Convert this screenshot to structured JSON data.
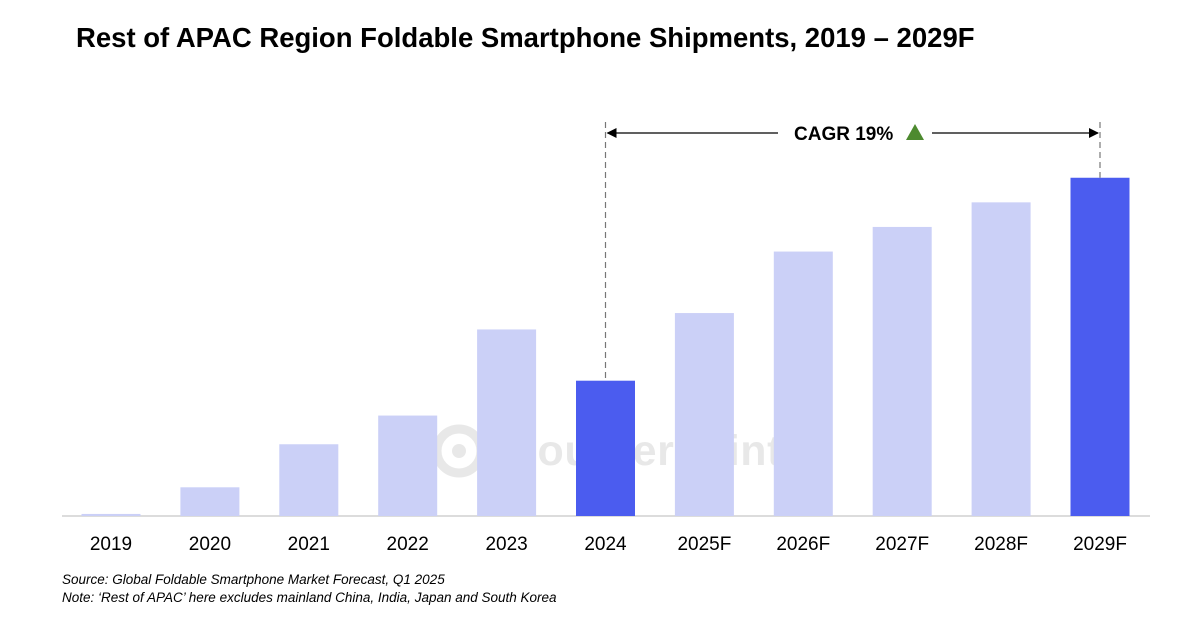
{
  "title": "Rest of APAC Region Foldable Smartphone Shipments, 2019 – 2029F",
  "chart_data": {
    "type": "bar",
    "categories": [
      "2019",
      "2020",
      "2021",
      "2022",
      "2023",
      "2024",
      "2025F",
      "2026F",
      "2027F",
      "2028F",
      "2029F"
    ],
    "values": [
      0.5,
      7,
      17.5,
      24.5,
      45.5,
      33,
      49.5,
      64.5,
      70.5,
      76.5,
      82.5
    ],
    "highlighted": [
      "2024",
      "2029F"
    ],
    "ylim": [
      0,
      100
    ],
    "grid": false,
    "colors": {
      "bar": "#cbd0f7",
      "highlight": "#4b5cef",
      "axis": "#d0d0d0",
      "cagr_marker": "#4d8a2f"
    },
    "annotation": {
      "label": "CAGR 19%",
      "from": "2024",
      "to": "2029F",
      "marker": "up-triangle"
    }
  },
  "watermark": {
    "text": "Counterpoint",
    "icon": "counterpoint-logo-icon"
  },
  "source_lines": [
    "Source: Global Foldable Smartphone Market Forecast, Q1 2025",
    "Note: ‘Rest of APAC’ here excludes mainland China, India, Japan and South Korea"
  ]
}
